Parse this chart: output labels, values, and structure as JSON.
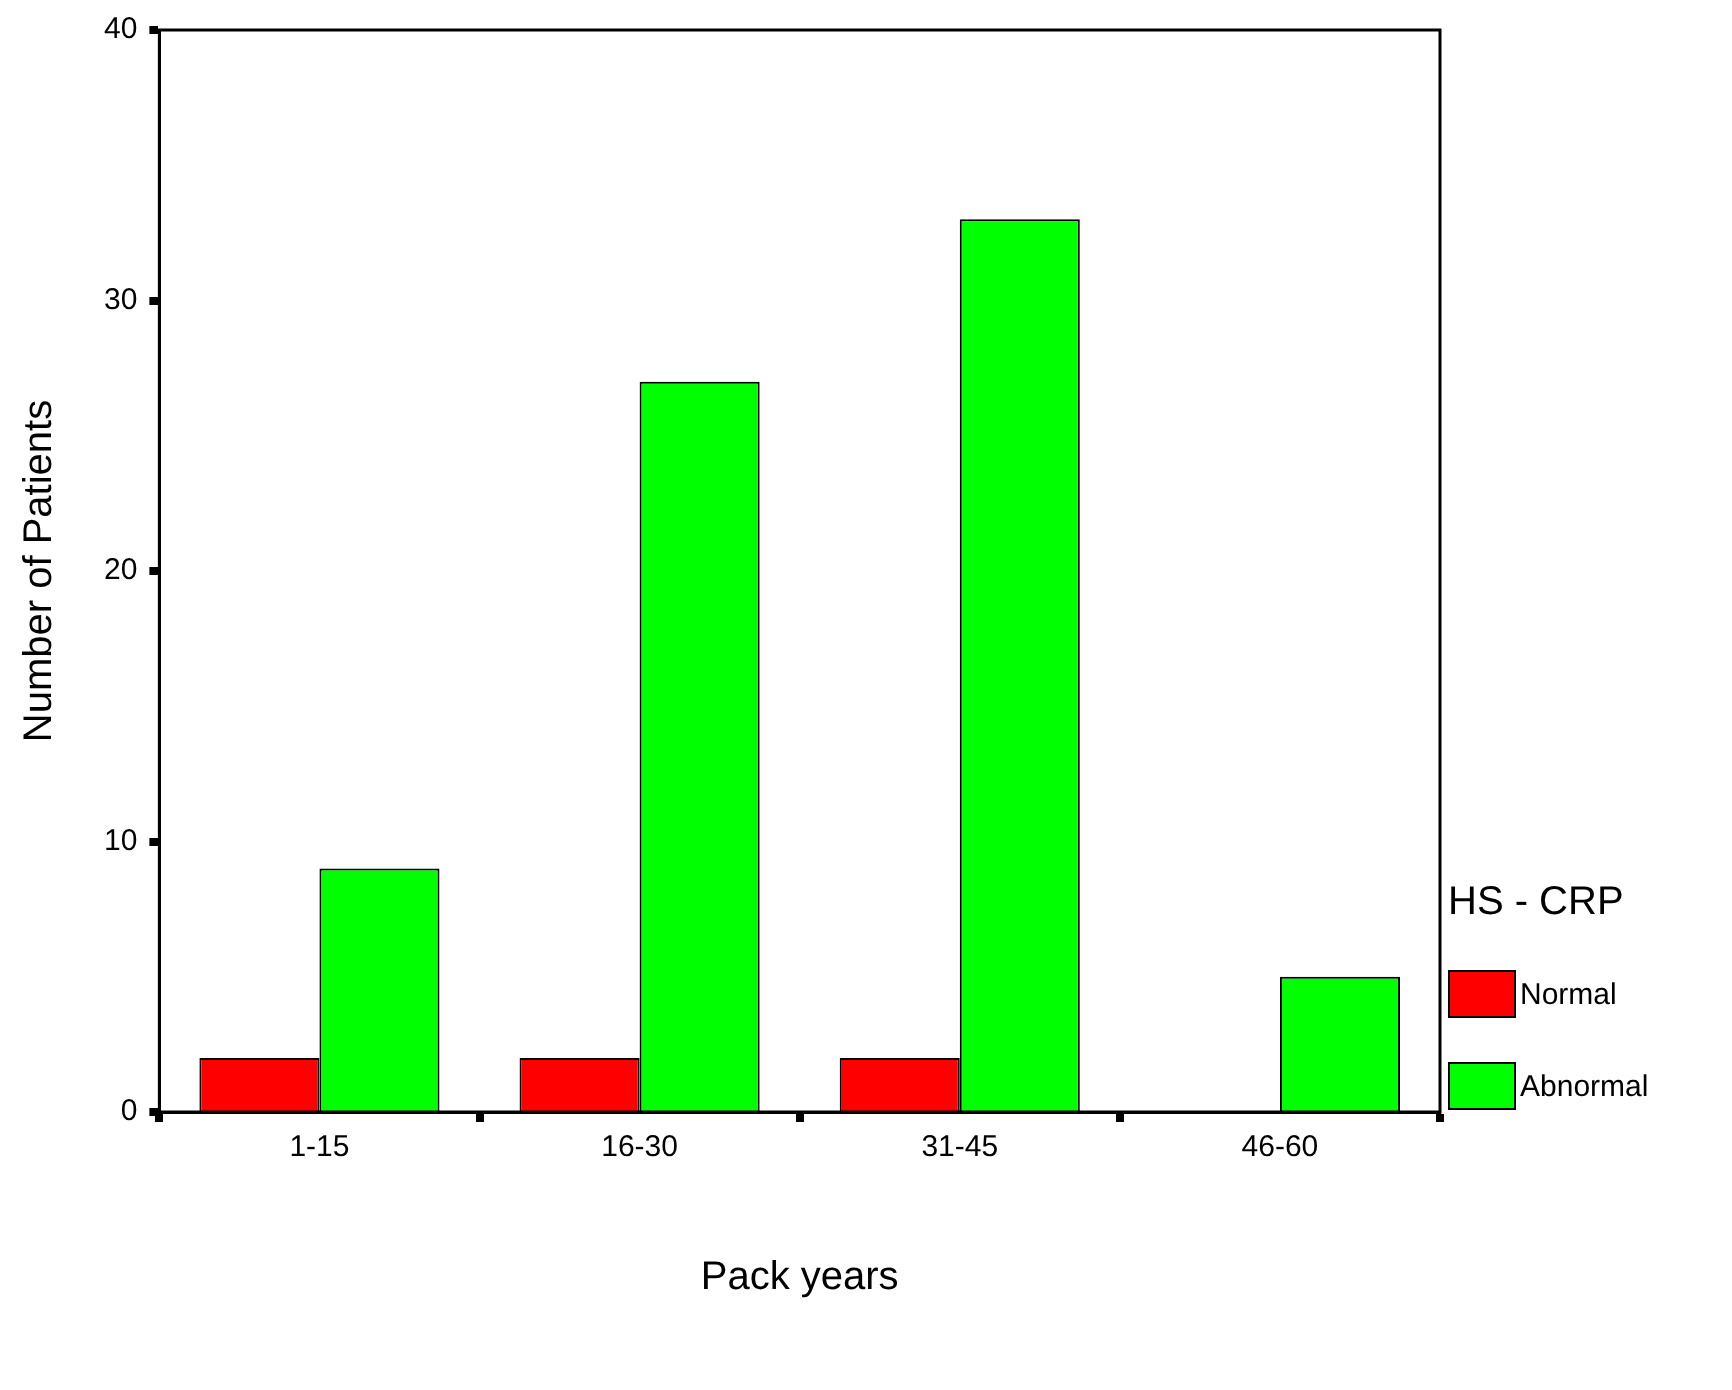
{
  "chart_data": {
    "type": "bar",
    "xlabel": "Pack years",
    "ylabel": "Number of Patients",
    "legend_title": "HS - CRP",
    "legend": "right",
    "categories": [
      "1-15",
      "16-30",
      "31-45",
      "46-60"
    ],
    "series": [
      {
        "name": "Normal",
        "color": "#ff0000",
        "values": [
          2,
          2,
          2,
          0
        ]
      },
      {
        "name": "Abnormal",
        "color": "#00ff00",
        "values": [
          9,
          27,
          33,
          5
        ]
      }
    ],
    "ylim": [
      0,
      40
    ],
    "yticks": [
      0,
      10,
      20,
      30,
      40
    ],
    "grid": false
  }
}
